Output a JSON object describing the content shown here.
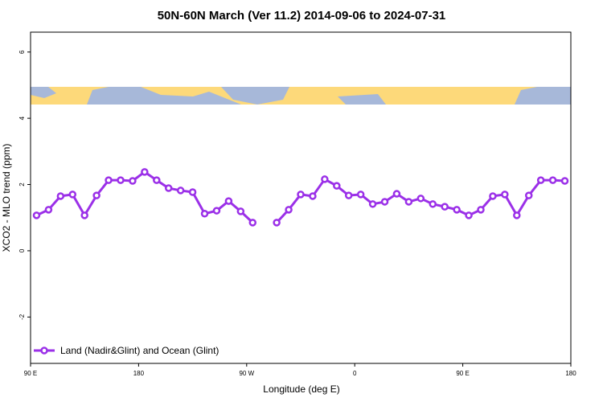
{
  "chart_data": {
    "type": "line",
    "title": "50N-60N March (Ver 11.2)   2014-09-06 to 2024-07-31",
    "x_label": "Longitude (deg E)",
    "y_label": "XCO2 - MLO trend (ppm)",
    "x": [
      95,
      105,
      115,
      125,
      135,
      145,
      155,
      165,
      175,
      185,
      195,
      205,
      215,
      225,
      235,
      245,
      255,
      265,
      275,
      285,
      295,
      305,
      315,
      325,
      335,
      345,
      355,
      365,
      375,
      385,
      395,
      405,
      415,
      425,
      435,
      445,
      455,
      465,
      475,
      485,
      495,
      505,
      515,
      525,
      535
    ],
    "series": [
      {
        "name": "Land (Nadir&Glint) and Ocean (Glint)",
        "color": "#9b30e8",
        "values": [
          1.07,
          1.24,
          1.65,
          1.7,
          1.07,
          1.67,
          2.13,
          2.13,
          2.11,
          2.38,
          2.13,
          1.89,
          1.82,
          1.77,
          1.12,
          1.21,
          1.5,
          1.19,
          0.85,
          null,
          0.85,
          1.24,
          1.7,
          1.65,
          2.16,
          1.96,
          1.67,
          1.7,
          1.41,
          1.48,
          1.72,
          1.48,
          1.58,
          1.41,
          1.33,
          1.24,
          1.07,
          1.24,
          1.65,
          1.7,
          1.07,
          1.67,
          2.13,
          2.13,
          2.11
        ]
      }
    ],
    "xlim": [
      90,
      540
    ],
    "xticks": [
      {
        "value": 90,
        "label": "90 E"
      },
      180,
      {
        "value": 270,
        "label": "90 W"
      },
      {
        "value": 360,
        "label": "0"
      },
      {
        "value": 450,
        "label": "90 E"
      },
      {
        "value": 540,
        "label": "180"
      }
    ],
    "ylim": [
      -3.4,
      6.6
    ],
    "yticks": [
      -2,
      0,
      2,
      4,
      6
    ],
    "legend": "bottom-left"
  }
}
